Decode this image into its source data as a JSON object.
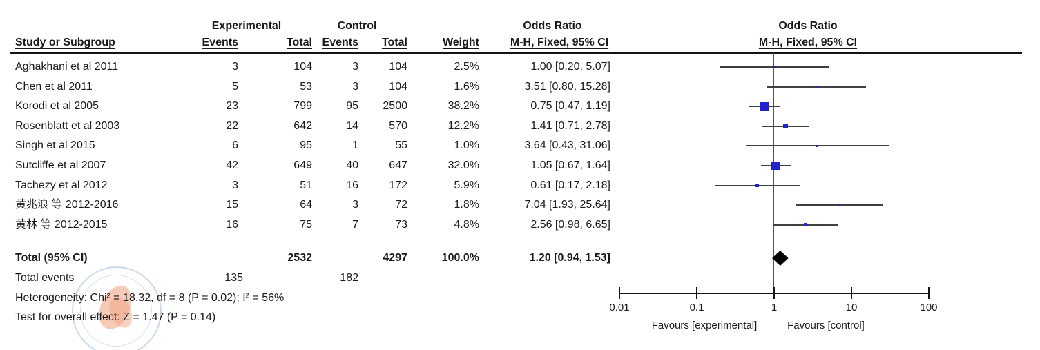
{
  "table": {
    "group_headers": {
      "experimental": "Experimental",
      "control": "Control",
      "odds_ratio": "Odds Ratio"
    },
    "subheaders": {
      "study": "Study or Subgroup",
      "events": "Events",
      "total": "Total",
      "weight": "Weight",
      "mh": "M-H, Fixed, 95% CI"
    }
  },
  "chart_data": {
    "type": "forest",
    "title": "Odds Ratio",
    "subtitle": "M-H, Fixed, 95% CI",
    "effect_measure": "Odds Ratio, M-H, Fixed, 95% CI",
    "x_scale": "log10",
    "xlim": [
      0.01,
      100
    ],
    "x_ticks": [
      0.01,
      0.1,
      1,
      10,
      100
    ],
    "x_tick_labels": [
      "0.01",
      "0.1",
      "1",
      "10",
      "100"
    ],
    "favours_left": "Favours [experimental]",
    "favours_right": "Favours [control]",
    "square_color": "#2222CC",
    "line_color": "#404040",
    "diamond_color": "#000000",
    "studies": [
      {
        "label": "Aghakhani et al 2011",
        "exp_events": 3,
        "exp_total": 104,
        "ctrl_events": 3,
        "ctrl_total": 104,
        "weight": "2.5%",
        "weight_pct": 2.5,
        "or": 1.0,
        "ci_low": 0.2,
        "ci_high": 5.07,
        "or_text": "1.00 [0.20, 5.07]"
      },
      {
        "label": "Chen et al 2011",
        "exp_events": 5,
        "exp_total": 53,
        "ctrl_events": 3,
        "ctrl_total": 104,
        "weight": "1.6%",
        "weight_pct": 1.6,
        "or": 3.51,
        "ci_low": 0.8,
        "ci_high": 15.28,
        "or_text": "3.51 [0.80, 15.28]"
      },
      {
        "label": "Korodi et al 2005",
        "exp_events": 23,
        "exp_total": 799,
        "ctrl_events": 95,
        "ctrl_total": 2500,
        "weight": "38.2%",
        "weight_pct": 38.2,
        "or": 0.75,
        "ci_low": 0.47,
        "ci_high": 1.19,
        "or_text": "0.75 [0.47, 1.19]"
      },
      {
        "label": "Rosenblatt et al 2003",
        "exp_events": 22,
        "exp_total": 642,
        "ctrl_events": 14,
        "ctrl_total": 570,
        "weight": "12.2%",
        "weight_pct": 12.2,
        "or": 1.41,
        "ci_low": 0.71,
        "ci_high": 2.78,
        "or_text": "1.41 [0.71, 2.78]"
      },
      {
        "label": "Singh et al 2015",
        "exp_events": 6,
        "exp_total": 95,
        "ctrl_events": 1,
        "ctrl_total": 55,
        "weight": "1.0%",
        "weight_pct": 1.0,
        "or": 3.64,
        "ci_low": 0.43,
        "ci_high": 31.06,
        "or_text": "3.64 [0.43, 31.06]"
      },
      {
        "label": "Sutcliffe et al 2007",
        "exp_events": 42,
        "exp_total": 649,
        "ctrl_events": 40,
        "ctrl_total": 647,
        "weight": "32.0%",
        "weight_pct": 32.0,
        "or": 1.05,
        "ci_low": 0.67,
        "ci_high": 1.64,
        "or_text": "1.05 [0.67, 1.64]"
      },
      {
        "label": "Tachezy et al 2012",
        "exp_events": 3,
        "exp_total": 51,
        "ctrl_events": 16,
        "ctrl_total": 172,
        "weight": "5.9%",
        "weight_pct": 5.9,
        "or": 0.61,
        "ci_low": 0.17,
        "ci_high": 2.18,
        "or_text": "0.61 [0.17, 2.18]"
      },
      {
        "label": "黄兆浪 等 2012-2016",
        "exp_events": 15,
        "exp_total": 64,
        "ctrl_events": 3,
        "ctrl_total": 72,
        "weight": "1.8%",
        "weight_pct": 1.8,
        "or": 7.04,
        "ci_low": 1.93,
        "ci_high": 25.64,
        "or_text": "7.04 [1.93, 25.64]"
      },
      {
        "label": "黄林 等 2012-2015",
        "exp_events": 16,
        "exp_total": 75,
        "ctrl_events": 7,
        "ctrl_total": 73,
        "weight": "4.8%",
        "weight_pct": 4.8,
        "or": 2.56,
        "ci_low": 0.98,
        "ci_high": 6.65,
        "or_text": "2.56 [0.98, 6.65]"
      }
    ],
    "total": {
      "label": "Total (95% CI)",
      "exp_total": 2532,
      "ctrl_total": 4297,
      "weight": "100.0%",
      "or": 1.2,
      "ci_low": 0.94,
      "ci_high": 1.53,
      "or_text": "1.20 [0.94, 1.53]"
    },
    "total_events": {
      "label": "Total events",
      "exp": 135,
      "ctrl": 182
    },
    "heterogeneity": "Heterogeneity: Chi² = 18.32, df = 8 (P = 0.02); I² = 56%",
    "overall_effect": "Test for overall effect: Z = 1.47 (P = 0.14)"
  }
}
